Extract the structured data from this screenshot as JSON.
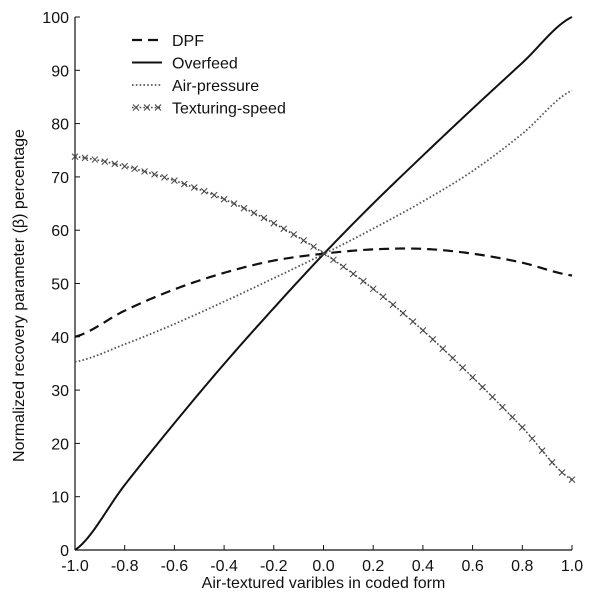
{
  "chart_data": {
    "type": "line",
    "title": "",
    "xlabel": "Air-textured varibles in coded form",
    "ylabel": "Normalized recovery parameter (β) percentage",
    "xlim": [
      -1.0,
      1.0
    ],
    "ylim": [
      0,
      100
    ],
    "xticks": [
      "-1.0",
      "-0.8",
      "-0.6",
      "-0.4",
      "-0.2",
      "0.0",
      "0.2",
      "0.4",
      "0.6",
      "0.8",
      "1.0"
    ],
    "yticks": [
      "0",
      "10",
      "20",
      "30",
      "40",
      "50",
      "60",
      "70",
      "80",
      "90",
      "100"
    ],
    "grid": false,
    "legend_position": "top-left",
    "x": [
      -1.0,
      -0.8,
      -0.6,
      -0.4,
      -0.2,
      0.0,
      0.2,
      0.4,
      0.6,
      0.8,
      1.0
    ],
    "series": [
      {
        "name": "DPF",
        "line_style": "dashed",
        "color": "#111111",
        "values": [
          40.0,
          44.9,
          48.9,
          52.0,
          54.3,
          55.6,
          56.4,
          56.5,
          55.6,
          53.9,
          51.5
        ]
      },
      {
        "name": "Overfeed",
        "line_style": "solid",
        "color": "#111111",
        "values": [
          0.0,
          12.2,
          23.8,
          34.9,
          45.4,
          55.5,
          65.0,
          74.0,
          82.8,
          91.4,
          100.0
        ]
      },
      {
        "name": "Air-pressure",
        "line_style": "dotted",
        "color": "#555555",
        "values": [
          35.3,
          38.6,
          42.4,
          46.6,
          51.0,
          55.5,
          60.3,
          65.4,
          71.1,
          78.1,
          86.2
        ]
      },
      {
        "name": "Texturing-speed",
        "line_style": "dotted-with-x-markers",
        "color": "#444444",
        "values": [
          73.8,
          72.0,
          69.3,
          65.8,
          61.3,
          55.7,
          49.0,
          41.2,
          32.4,
          23.0,
          13.2
        ]
      }
    ]
  }
}
